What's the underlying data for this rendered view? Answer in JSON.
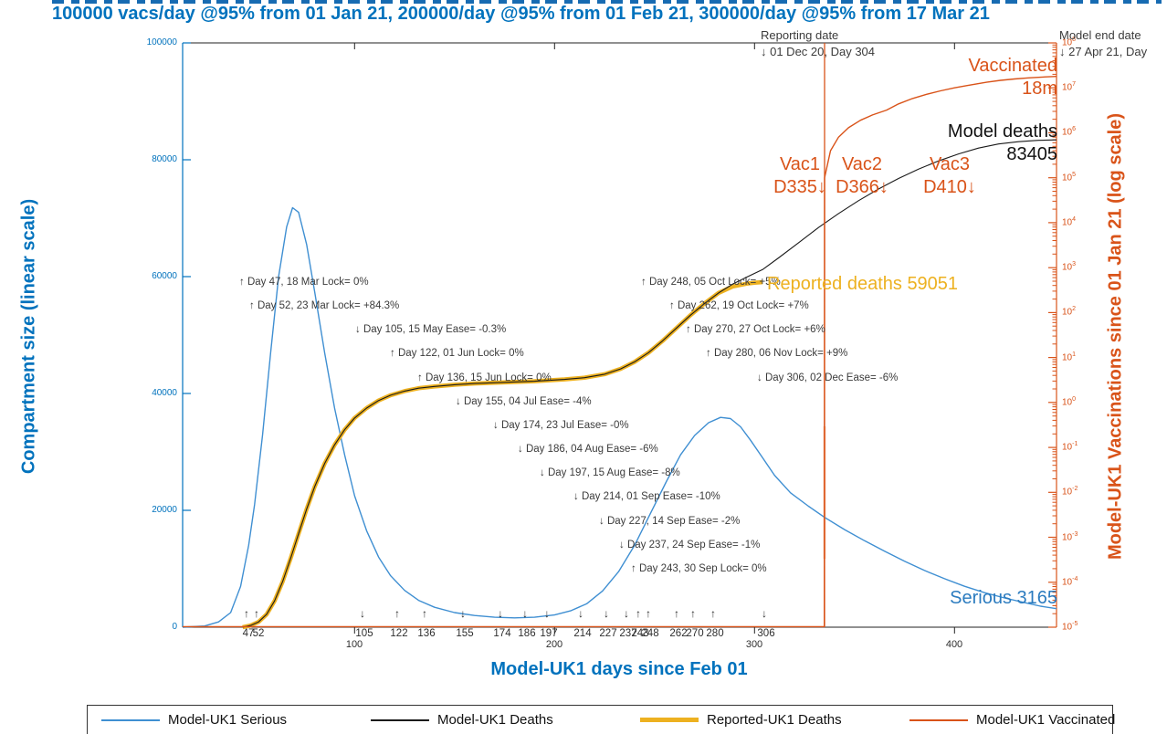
{
  "title": {
    "main": "100000 vacs/day @95% from 01 Jan 21, 200000/day @95% from 01 Feb 21, 300000/day @95% from 17 Mar 21"
  },
  "chart_data": {
    "type": "line",
    "xlabel": "Model-UK1 days since Feb 01",
    "ylabel_left": "Compartment size (linear scale)",
    "ylabel_right": "Model-UK1 Vaccinations since 01 Jan 21 (log scale)",
    "axes": {
      "x": {
        "min": 14,
        "max": 451,
        "major_ticks": [
          100,
          200,
          300,
          400
        ],
        "event_ticks": [
          {
            "day": 47,
            "dir": "up"
          },
          {
            "day": 52,
            "dir": "up"
          },
          {
            "day": 105,
            "dir": "down"
          },
          {
            "day": 122,
            "dir": "up"
          },
          {
            "day": 136,
            "dir": "up"
          },
          {
            "day": 155,
            "dir": "down"
          },
          {
            "day": 174,
            "dir": "down"
          },
          {
            "day": 186,
            "dir": "down"
          },
          {
            "day": 197,
            "dir": "down"
          },
          {
            "day": 214,
            "dir": "down"
          },
          {
            "day": 227,
            "dir": "down"
          },
          {
            "day": 237,
            "dir": "down"
          },
          {
            "day": 243,
            "dir": "up"
          },
          {
            "day": 248,
            "dir": "up"
          },
          {
            "day": 262,
            "dir": "up"
          },
          {
            "day": 270,
            "dir": "up"
          },
          {
            "day": 280,
            "dir": "up"
          },
          {
            "day": 306,
            "dir": "down"
          }
        ]
      },
      "y_left": {
        "min": 0,
        "max": 100000,
        "ticks": [
          0,
          20000,
          40000,
          60000,
          80000,
          100000
        ]
      },
      "y_right": {
        "scale": "log",
        "exponents": [
          8,
          7,
          6,
          5,
          4,
          3,
          2,
          1,
          0,
          -1,
          -2,
          -3,
          -4,
          -5
        ]
      }
    },
    "annotations": [
      {
        "day": 47,
        "row": 0,
        "text": "↑ Day 47, 18 Mar Lock= 0%"
      },
      {
        "day": 52,
        "row": 1,
        "text": "↑ Day 52, 23 Mar Lock= +84.3%"
      },
      {
        "day": 105,
        "row": 2,
        "text": "↓ Day 105, 15 May Ease= -0.3%"
      },
      {
        "day": 122,
        "row": 3,
        "text": "↑ Day 122, 01 Jun Lock= 0%"
      },
      {
        "day": 136,
        "row": 4,
        "text": "↑ Day 136, 15 Jun Lock= 0%"
      },
      {
        "day": 155,
        "row": 5,
        "text": "↓ Day 155, 04 Jul Ease= -4%"
      },
      {
        "day": 174,
        "row": 6,
        "text": "↓ Day 174, 23 Jul Ease= -0%"
      },
      {
        "day": 186,
        "row": 7,
        "text": "↓ Day 186, 04 Aug Ease= -6%"
      },
      {
        "day": 197,
        "row": 8,
        "text": "↓ Day 197, 15 Aug Ease= -8%"
      },
      {
        "day": 214,
        "row": 9,
        "text": "↓ Day 214, 01 Sep Ease= -10%"
      },
      {
        "day": 227,
        "row": 10,
        "text": "↓ Day 227, 14 Sep Ease= -2%"
      },
      {
        "day": 237,
        "row": 11,
        "text": "↓ Day 237, 24 Sep Ease= -1%"
      },
      {
        "day": 243,
        "row": 12,
        "text": "↑ Day 243, 30 Sep Lock= 0%"
      },
      {
        "day": 248,
        "row": 0,
        "text": "↑ Day 248, 05 Oct Lock= +5%"
      },
      {
        "day": 262,
        "row": 1,
        "text": "↑ Day 262, 19 Oct Lock= +7%"
      },
      {
        "day": 270,
        "row": 2,
        "text": "↑ Day 270, 27 Oct Lock= +6%"
      },
      {
        "day": 280,
        "row": 3,
        "text": "↑ Day 280, 06 Nov Lock= +9%"
      },
      {
        "day": 306,
        "row": 4,
        "text": "↓ Day 306, 02 Dec Ease= -6%"
      }
    ],
    "labels": {
      "reporting_date_line1": "Reporting date",
      "reporting_date_line2": "↓ 01 Dec 20, Day 304",
      "model_end_line1": "Model end date",
      "model_end_line2": "↓ 27 Apr 21, Day",
      "vaccinated_line1": "Vaccinated",
      "vaccinated_line2": "18m",
      "model_deaths_line1": "Model deaths",
      "model_deaths_line2": "83405",
      "reported_deaths": "Reported deaths 59051",
      "serious": "Serious 3165"
    },
    "vac_events": [
      {
        "name": "Vac1",
        "sub": "D335↓",
        "day": 335
      },
      {
        "name": "Vac2",
        "sub": "D366↓",
        "day": 366
      },
      {
        "name": "Vac3",
        "sub": "D410↓",
        "day": 410
      }
    ],
    "vline": {
      "day": 335,
      "color": "#D95319"
    },
    "colors": {
      "blue": "#0072BD",
      "serious": "#3f8fd2",
      "deaths": "#1a1a1a",
      "reported": "#EDB120",
      "vaccinated": "#D95319"
    },
    "series": [
      {
        "name": "Model-UK1 Serious",
        "axis": "left",
        "color": "#3f8fd2",
        "width": 1.4,
        "points": [
          [
            14,
            0
          ],
          [
            25,
            200
          ],
          [
            32,
            900
          ],
          [
            38,
            2500
          ],
          [
            43,
            7000
          ],
          [
            47,
            14000
          ],
          [
            50,
            21000
          ],
          [
            54,
            33000
          ],
          [
            58,
            47000
          ],
          [
            62,
            60000
          ],
          [
            66,
            68500
          ],
          [
            69,
            71800
          ],
          [
            72,
            71000
          ],
          [
            76,
            65500
          ],
          [
            80,
            57500
          ],
          [
            85,
            47000
          ],
          [
            90,
            37500
          ],
          [
            95,
            29500
          ],
          [
            100,
            22500
          ],
          [
            106,
            16500
          ],
          [
            112,
            12000
          ],
          [
            118,
            8800
          ],
          [
            125,
            6300
          ],
          [
            132,
            4600
          ],
          [
            140,
            3400
          ],
          [
            150,
            2500
          ],
          [
            160,
            2000
          ],
          [
            170,
            1700
          ],
          [
            180,
            1600
          ],
          [
            190,
            1700
          ],
          [
            200,
            2100
          ],
          [
            208,
            2800
          ],
          [
            216,
            4000
          ],
          [
            224,
            6200
          ],
          [
            232,
            9500
          ],
          [
            240,
            14000
          ],
          [
            248,
            19500
          ],
          [
            256,
            25000
          ],
          [
            263,
            29500
          ],
          [
            270,
            32800
          ],
          [
            277,
            35000
          ],
          [
            283,
            35900
          ],
          [
            288,
            35700
          ],
          [
            293,
            34300
          ],
          [
            298,
            32000
          ],
          [
            304,
            29000
          ],
          [
            310,
            26000
          ],
          [
            318,
            23000
          ],
          [
            327,
            20700
          ],
          [
            335,
            18800
          ],
          [
            345,
            16700
          ],
          [
            355,
            14800
          ],
          [
            365,
            13000
          ],
          [
            375,
            11300
          ],
          [
            385,
            9700
          ],
          [
            395,
            8300
          ],
          [
            405,
            7000
          ],
          [
            415,
            5900
          ],
          [
            425,
            5000
          ],
          [
            435,
            4200
          ],
          [
            443,
            3600
          ],
          [
            451,
            3165
          ]
        ]
      },
      {
        "name": "Reported-UK1 Deaths",
        "axis": "left",
        "color": "#EDB120",
        "width": 4.6,
        "points": [
          [
            44,
            0
          ],
          [
            48,
            300
          ],
          [
            52,
            900
          ],
          [
            56,
            2200
          ],
          [
            60,
            4500
          ],
          [
            64,
            7800
          ],
          [
            68,
            11800
          ],
          [
            72,
            16000
          ],
          [
            76,
            20200
          ],
          [
            80,
            24000
          ],
          [
            85,
            28000
          ],
          [
            90,
            31200
          ],
          [
            95,
            33800
          ],
          [
            100,
            35800
          ],
          [
            106,
            37500
          ],
          [
            112,
            38800
          ],
          [
            118,
            39700
          ],
          [
            125,
            40400
          ],
          [
            132,
            40900
          ],
          [
            140,
            41200
          ],
          [
            150,
            41500
          ],
          [
            160,
            41700
          ],
          [
            175,
            41900
          ],
          [
            190,
            42100
          ],
          [
            205,
            42400
          ],
          [
            215,
            42700
          ],
          [
            225,
            43300
          ],
          [
            233,
            44200
          ],
          [
            240,
            45400
          ],
          [
            247,
            47000
          ],
          [
            254,
            49000
          ],
          [
            261,
            51200
          ],
          [
            268,
            53400
          ],
          [
            275,
            55400
          ],
          [
            282,
            57200
          ],
          [
            289,
            58300
          ],
          [
            296,
            58800
          ],
          [
            300,
            58950
          ],
          [
            304,
            59051
          ]
        ]
      },
      {
        "name": "Model-UK1 Deaths",
        "axis": "left",
        "color": "#1a1a1a",
        "width": 1.1,
        "points": [
          [
            44,
            0
          ],
          [
            48,
            300
          ],
          [
            52,
            900
          ],
          [
            56,
            2200
          ],
          [
            60,
            4500
          ],
          [
            64,
            7800
          ],
          [
            68,
            11800
          ],
          [
            72,
            16000
          ],
          [
            76,
            20200
          ],
          [
            80,
            24000
          ],
          [
            85,
            28000
          ],
          [
            90,
            31200
          ],
          [
            95,
            33800
          ],
          [
            100,
            35800
          ],
          [
            106,
            37500
          ],
          [
            112,
            38800
          ],
          [
            118,
            39700
          ],
          [
            125,
            40400
          ],
          [
            132,
            40900
          ],
          [
            140,
            41200
          ],
          [
            150,
            41500
          ],
          [
            160,
            41700
          ],
          [
            175,
            41900
          ],
          [
            190,
            42100
          ],
          [
            205,
            42400
          ],
          [
            215,
            42700
          ],
          [
            225,
            43300
          ],
          [
            233,
            44200
          ],
          [
            240,
            45400
          ],
          [
            247,
            47000
          ],
          [
            254,
            49000
          ],
          [
            261,
            51200
          ],
          [
            268,
            53400
          ],
          [
            275,
            55400
          ],
          [
            282,
            57200
          ],
          [
            289,
            58700
          ],
          [
            296,
            59900
          ],
          [
            304,
            61200
          ],
          [
            312,
            63200
          ],
          [
            322,
            65800
          ],
          [
            332,
            68400
          ],
          [
            342,
            70800
          ],
          [
            352,
            73000
          ],
          [
            362,
            75000
          ],
          [
            372,
            76800
          ],
          [
            382,
            78400
          ],
          [
            392,
            79800
          ],
          [
            402,
            81000
          ],
          [
            412,
            82000
          ],
          [
            422,
            82700
          ],
          [
            432,
            83100
          ],
          [
            442,
            83330
          ],
          [
            451,
            83405
          ]
        ]
      },
      {
        "name": "Model-UK1 Vaccinated",
        "axis": "right",
        "color": "#D95319",
        "width": 1.4,
        "points": [
          [
            14,
            0
          ],
          [
            334.9,
            0
          ],
          [
            335,
            100000
          ],
          [
            338,
            400000
          ],
          [
            342,
            800000
          ],
          [
            347,
            1300000
          ],
          [
            353,
            1900000
          ],
          [
            359,
            2500000
          ],
          [
            366,
            3200000
          ],
          [
            372,
            4400000
          ],
          [
            379,
            5800000
          ],
          [
            386,
            7200000
          ],
          [
            393,
            8600000
          ],
          [
            400,
            10000000
          ],
          [
            406,
            11200000
          ],
          [
            410,
            12000000
          ],
          [
            416,
            13300000
          ],
          [
            423,
            14700000
          ],
          [
            430,
            15800000
          ],
          [
            437,
            16700000
          ],
          [
            444,
            17400000
          ],
          [
            451,
            18000000
          ]
        ]
      }
    ],
    "legend": {
      "items": [
        {
          "label": "Model-UK1 Serious",
          "color": "#3f8fd2",
          "weight": 2
        },
        {
          "label": "Model-UK1 Deaths",
          "color": "#1a1a1a",
          "weight": 2
        },
        {
          "label": "Reported-UK1 Deaths",
          "color": "#EDB120",
          "weight": 5
        },
        {
          "label": "Model-UK1 Vaccinated",
          "color": "#D95319",
          "weight": 2
        }
      ]
    }
  }
}
